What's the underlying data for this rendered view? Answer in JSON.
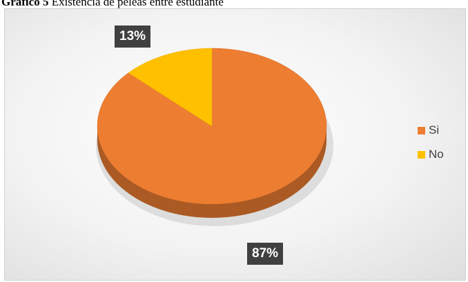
{
  "caption": {
    "label": "Gráfico 5",
    "text": " Existencia de peleas entre estudiante"
  },
  "chart_data": {
    "type": "pie",
    "title": "",
    "categories": [
      "Si",
      "No"
    ],
    "values": [
      87,
      13
    ],
    "data_labels": [
      "87%",
      "13%"
    ],
    "colors": [
      "#ED7D31",
      "#FFC000"
    ],
    "legend_position": "right",
    "style": "3d"
  },
  "legend": {
    "items": [
      {
        "label": "Si"
      },
      {
        "label": "No"
      }
    ]
  }
}
